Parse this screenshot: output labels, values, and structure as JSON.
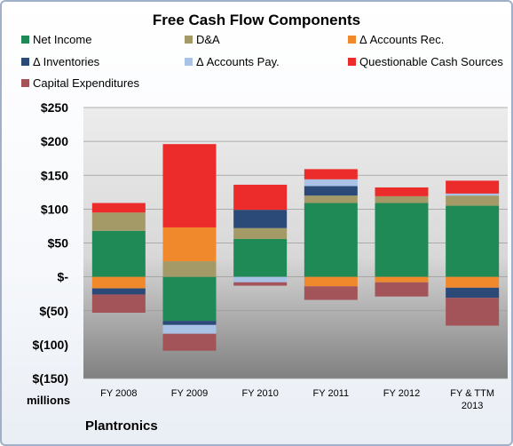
{
  "chart_data": {
    "type": "bar",
    "stacked": true,
    "title": "Free Cash Flow Components",
    "categories": [
      "FY 2008",
      "FY 2009",
      "FY 2010",
      "FY 2011",
      "FY 2012",
      "FY & TTM 2013"
    ],
    "unit_label": "millions",
    "ylim": [
      -150,
      250
    ],
    "yticks": [
      250,
      200,
      150,
      100,
      50,
      0,
      -50,
      -100,
      -150
    ],
    "ytick_labels": [
      "$250",
      "$200",
      "$150",
      "$100",
      "$50",
      "$-",
      "$(50)",
      "$(100)",
      "$(150)"
    ],
    "legend_position": "top",
    "series": [
      {
        "name": "Net Income",
        "color": "#1f8a55",
        "values": [
          68,
          -65,
          56,
          109,
          109,
          105
        ]
      },
      {
        "name": "D&A",
        "color": "#a39a68",
        "values": [
          27,
          23,
          16,
          11,
          10,
          15
        ]
      },
      {
        "name": "Δ Accounts Rec.",
        "color": "#f0892c",
        "values": [
          -17,
          50,
          0,
          -14,
          -8,
          -16
        ]
      },
      {
        "name": "Δ Inventories",
        "color": "#2b4a78",
        "values": [
          -9,
          -6,
          27,
          14,
          0,
          -15
        ]
      },
      {
        "name": "Δ Accounts Pay.",
        "color": "#a9c2e6",
        "values": [
          0,
          -13,
          -8,
          10,
          0,
          3
        ]
      },
      {
        "name": "Questionable Cash Sources",
        "color": "#ec2b2b",
        "values": [
          14,
          123,
          37,
          15,
          13,
          19
        ]
      },
      {
        "name": "Capital Expenditures",
        "color": "#a25458",
        "values": [
          -27,
          -25,
          -5,
          -20,
          -21,
          -41
        ]
      }
    ]
  },
  "footer": {
    "unit_label": "millions",
    "brand": "Plantronics"
  }
}
